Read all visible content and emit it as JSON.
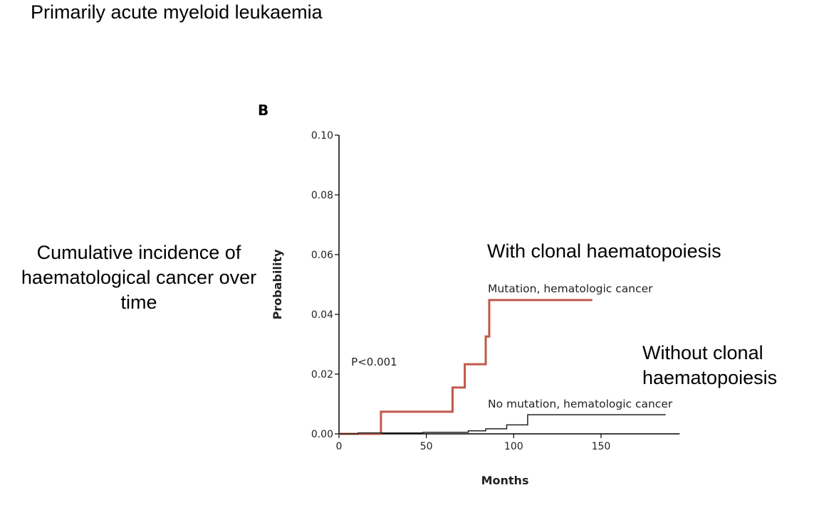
{
  "title": "Primarily acute myeloid leukaemia",
  "annotations": {
    "left": "Cumulative incidence of haematological cancer over time",
    "with": "With clonal haematopoiesis",
    "without": "Without clonal haematopoiesis"
  },
  "chart_data": {
    "type": "line",
    "step": true,
    "panel_label": "B",
    "xlabel": "Months",
    "ylabel": "Probability",
    "xlim": [
      0,
      195
    ],
    "ylim": [
      0,
      0.1
    ],
    "xticks": [
      0,
      50,
      100,
      150
    ],
    "xtick_labels": [
      "0",
      "50",
      "100",
      "150"
    ],
    "yticks": [
      0,
      0.02,
      0.04,
      0.06,
      0.08,
      0.1
    ],
    "ytick_labels": [
      "0.00",
      "0.02",
      "0.04",
      "0.06",
      "0.08",
      "0.10"
    ],
    "grid": false,
    "p_value_label": "P<0.001",
    "series": [
      {
        "name": "Mutation, hematologic cancer",
        "color": "#c0584a",
        "x": [
          0,
          24,
          65,
          72,
          84,
          86,
          145
        ],
        "y": [
          0,
          0.0074,
          0.0155,
          0.0233,
          0.0326,
          0.0448,
          0.0448
        ]
      },
      {
        "name": "No mutation, hematologic cancer",
        "color": "#222222",
        "x": [
          0,
          11,
          48,
          74,
          84,
          96,
          108,
          187
        ],
        "y": [
          0,
          0.0003,
          0.0005,
          0.001,
          0.0017,
          0.003,
          0.0064,
          0.0064
        ]
      }
    ]
  }
}
